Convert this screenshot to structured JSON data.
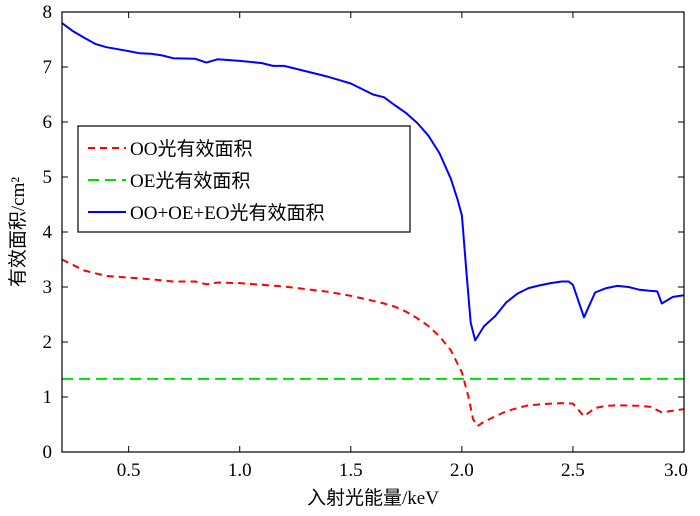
{
  "chart_data": {
    "type": "line",
    "title": "",
    "xlabel": "入射光能量/keV",
    "ylabel": "有效面积/cm²",
    "xlim": [
      0.2,
      3.0
    ],
    "ylim": [
      0,
      8
    ],
    "xticks": [
      0.5,
      1.0,
      1.5,
      2.0,
      2.5,
      3.0
    ],
    "xtick_labels": [
      "0.5",
      "1.0",
      "1.5",
      "2.0",
      "2.5",
      "3.0"
    ],
    "yticks": [
      0,
      1,
      2,
      3,
      4,
      5,
      6,
      7,
      8
    ],
    "ytick_labels": [
      "0",
      "1",
      "2",
      "3",
      "4",
      "5",
      "6",
      "7",
      "8"
    ],
    "grid": false,
    "legend_position": "center-left",
    "series": [
      {
        "name": "OO光有效面积",
        "color": "#ff0000",
        "style": "dashed",
        "x": [
          0.2,
          0.3,
          0.4,
          0.5,
          0.6,
          0.7,
          0.8,
          0.85,
          0.9,
          1.0,
          1.1,
          1.2,
          1.3,
          1.4,
          1.5,
          1.6,
          1.65,
          1.7,
          1.75,
          1.8,
          1.85,
          1.9,
          1.95,
          2.0,
          2.03,
          2.05,
          2.07,
          2.1,
          2.15,
          2.2,
          2.25,
          2.3,
          2.4,
          2.45,
          2.5,
          2.55,
          2.6,
          2.65,
          2.7,
          2.8,
          2.85,
          2.9,
          2.95,
          3.0
        ],
        "y": [
          3.5,
          3.3,
          3.2,
          3.17,
          3.14,
          3.1,
          3.1,
          3.05,
          3.08,
          3.07,
          3.04,
          3.01,
          2.96,
          2.91,
          2.84,
          2.75,
          2.7,
          2.64,
          2.55,
          2.43,
          2.29,
          2.1,
          1.85,
          1.45,
          1.0,
          0.6,
          0.47,
          0.55,
          0.65,
          0.74,
          0.8,
          0.85,
          0.88,
          0.89,
          0.88,
          0.65,
          0.8,
          0.84,
          0.85,
          0.84,
          0.82,
          0.72,
          0.75,
          0.78
        ]
      },
      {
        "name": "OE光有效面积",
        "color": "#00dd00",
        "style": "dashed",
        "x": [
          0.2,
          3.0
        ],
        "y": [
          1.33,
          1.33
        ]
      },
      {
        "name": "OO+OE+EO光有效面积",
        "color": "#0000ff",
        "style": "solid",
        "x": [
          0.2,
          0.25,
          0.3,
          0.35,
          0.4,
          0.5,
          0.55,
          0.6,
          0.65,
          0.7,
          0.8,
          0.85,
          0.9,
          1.0,
          1.1,
          1.15,
          1.2,
          1.3,
          1.4,
          1.45,
          1.5,
          1.55,
          1.6,
          1.65,
          1.7,
          1.75,
          1.8,
          1.85,
          1.9,
          1.95,
          1.98,
          2.0,
          2.02,
          2.04,
          2.06,
          2.1,
          2.15,
          2.2,
          2.25,
          2.3,
          2.35,
          2.4,
          2.45,
          2.48,
          2.5,
          2.55,
          2.6,
          2.65,
          2.7,
          2.75,
          2.8,
          2.85,
          2.88,
          2.9,
          2.95,
          3.0
        ],
        "y": [
          7.8,
          7.65,
          7.53,
          7.42,
          7.36,
          7.29,
          7.25,
          7.24,
          7.21,
          7.16,
          7.15,
          7.08,
          7.14,
          7.11,
          7.07,
          7.02,
          7.02,
          6.92,
          6.82,
          6.76,
          6.7,
          6.6,
          6.5,
          6.45,
          6.3,
          6.16,
          5.98,
          5.75,
          5.43,
          4.97,
          4.6,
          4.3,
          3.3,
          2.35,
          2.03,
          2.29,
          2.47,
          2.72,
          2.88,
          2.98,
          3.03,
          3.07,
          3.1,
          3.1,
          3.04,
          2.45,
          2.9,
          2.98,
          3.02,
          3.0,
          2.95,
          2.93,
          2.92,
          2.7,
          2.82,
          2.85
        ]
      }
    ]
  }
}
